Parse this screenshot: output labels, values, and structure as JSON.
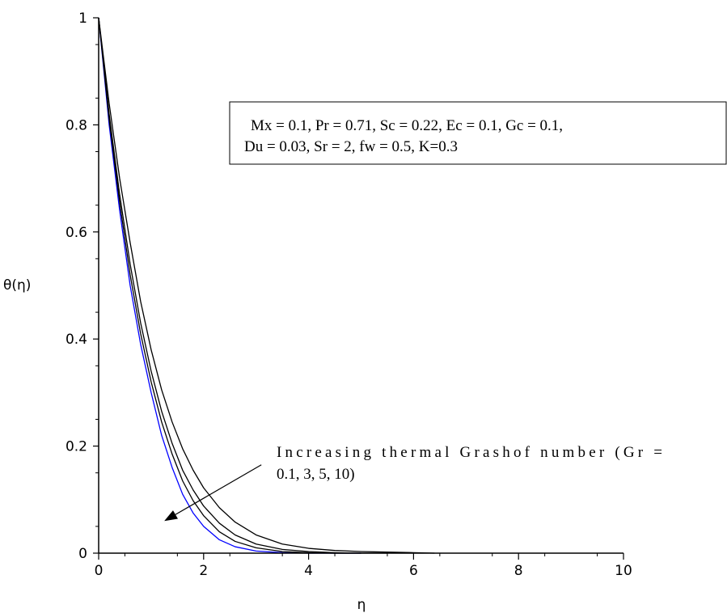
{
  "chart_data": {
    "type": "line",
    "xlabel": "η",
    "ylabel": "θ(η)",
    "xlim": [
      0,
      10
    ],
    "ylim": [
      0,
      1
    ],
    "x_ticks": [
      0,
      2,
      4,
      6,
      8,
      10
    ],
    "y_ticks": [
      0,
      0.2,
      0.4,
      0.6,
      0.8,
      1
    ],
    "x_tick_labels": [
      "0",
      "2",
      "4",
      "6",
      "8",
      "10"
    ],
    "y_tick_labels": [
      "0",
      "0.2",
      "0.4",
      "0.6",
      "0.8",
      "1"
    ],
    "grid": false,
    "series": [
      {
        "color": "#0000ff",
        "x": [
          0,
          0.2,
          0.4,
          0.6,
          0.8,
          1.0,
          1.2,
          1.4,
          1.6,
          1.8,
          2.0,
          2.3,
          2.6,
          3.0,
          3.5,
          4.0,
          4.5,
          5.0
        ],
        "y": [
          1.0,
          0.8,
          0.64,
          0.5,
          0.39,
          0.3,
          0.22,
          0.16,
          0.11,
          0.075,
          0.05,
          0.025,
          0.012,
          0.004,
          0.001,
          0.0,
          0.0,
          0.0
        ]
      },
      {
        "color": "#000000",
        "x": [
          0,
          0.2,
          0.4,
          0.6,
          0.8,
          1.0,
          1.2,
          1.4,
          1.6,
          1.8,
          2.0,
          2.3,
          2.6,
          3.0,
          3.5,
          4.0,
          4.5,
          5.0
        ],
        "y": [
          1.0,
          0.81,
          0.655,
          0.52,
          0.41,
          0.32,
          0.245,
          0.185,
          0.135,
          0.098,
          0.07,
          0.04,
          0.022,
          0.01,
          0.003,
          0.001,
          0.0,
          0.0
        ]
      },
      {
        "color": "#000000",
        "x": [
          0,
          0.2,
          0.4,
          0.6,
          0.8,
          1.0,
          1.2,
          1.4,
          1.6,
          1.8,
          2.0,
          2.3,
          2.6,
          3.0,
          3.5,
          4.0,
          4.5,
          5.0,
          5.5
        ],
        "y": [
          1.0,
          0.82,
          0.67,
          0.54,
          0.43,
          0.34,
          0.265,
          0.205,
          0.155,
          0.118,
          0.088,
          0.056,
          0.034,
          0.017,
          0.007,
          0.003,
          0.001,
          0.0,
          0.0
        ]
      },
      {
        "color": "#000000",
        "x": [
          0,
          0.2,
          0.4,
          0.6,
          0.8,
          1.0,
          1.2,
          1.4,
          1.6,
          1.8,
          2.0,
          2.3,
          2.6,
          3.0,
          3.5,
          4.0,
          4.5,
          5.0,
          5.5,
          6.0,
          6.4
        ],
        "y": [
          1.0,
          0.84,
          0.7,
          0.58,
          0.47,
          0.38,
          0.305,
          0.245,
          0.195,
          0.155,
          0.122,
          0.085,
          0.058,
          0.034,
          0.017,
          0.009,
          0.005,
          0.003,
          0.002,
          0.001,
          0.0
        ]
      }
    ],
    "annotations": {
      "parameters": {
        "line1": "Mx = 0.1, Pr = 0.71, Sc = 0.22, Ec = 0.1, Gc = 0.1,",
        "line2": "Du = 0.03, Sr = 2, fw = 0.5, K=0.3"
      },
      "trend": {
        "line1": "Increasing thermal Grashof number (Gr =",
        "line2": "0.1, 3, 5, 10)",
        "arrow_from": [
          3.1,
          0.165
        ],
        "arrow_to": [
          1.25,
          0.06
        ]
      }
    }
  }
}
